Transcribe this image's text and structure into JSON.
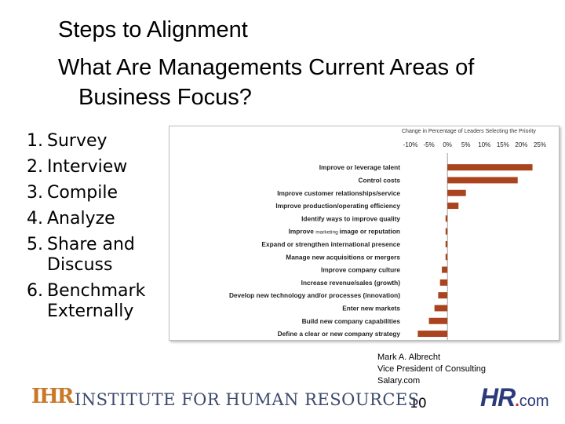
{
  "slide": {
    "title_line1": "Steps to Alignment",
    "title_line2": "What Are Managements Current Areas of",
    "title_line3": "Business Focus?"
  },
  "steps": [
    {
      "num": "1.",
      "text": "Survey",
      "cont": ""
    },
    {
      "num": "2.",
      "text": "Interview",
      "cont": ""
    },
    {
      "num": "3.",
      "text": "Compile",
      "cont": ""
    },
    {
      "num": "4.",
      "text": "Analyze",
      "cont": ""
    },
    {
      "num": "5.",
      "text": "Share and",
      "cont": "Discuss"
    },
    {
      "num": "6.",
      "text": "Benchmark",
      "cont": "Externally"
    }
  ],
  "chart_data": {
    "type": "bar",
    "orientation": "horizontal",
    "title": "Change in Percentage of Leaders Selecting the Priority",
    "xlim": [
      -10,
      25
    ],
    "xticks": [
      "-10%",
      "-5%",
      "0%",
      "5%",
      "10%",
      "15%",
      "20%",
      "25%"
    ],
    "categories": [
      "Improve or leverage talent",
      "Control costs",
      "Improve customer relationships/service",
      "Improve production/operating efficiency",
      "Identify ways to improve quality",
      "Improve marketing image or reputation",
      "Expand or strengthen international presence",
      "Manage new acquisitions or mergers",
      "Improve company culture",
      "Increase revenue/sales (growth)",
      "Develop new technology and/or processes (innovation)",
      "Enter new markets",
      "Build new company capabilities",
      "Define a clear or new company strategy"
    ],
    "category_overlay": {
      "index": 5,
      "word": "marketing"
    },
    "values": [
      23,
      19,
      5,
      3,
      -0.5,
      -0.5,
      -0.5,
      -0.5,
      -1.5,
      -2,
      -2.5,
      -3.5,
      -5,
      -8
    ],
    "bar_color": "#a9441f"
  },
  "credit": {
    "line1": "Mark A. Albrecht",
    "line2": "Vice President of Consulting",
    "line3": "Salary.com"
  },
  "page_number": "10",
  "footer": {
    "ihr_mark": "IHR",
    "ihr_name": "INSTITUTE FOR HUMAN RESOURCES",
    "hr_logo_main": "HR",
    "hr_logo_dot": ".",
    "hr_logo_suffix": "com"
  }
}
